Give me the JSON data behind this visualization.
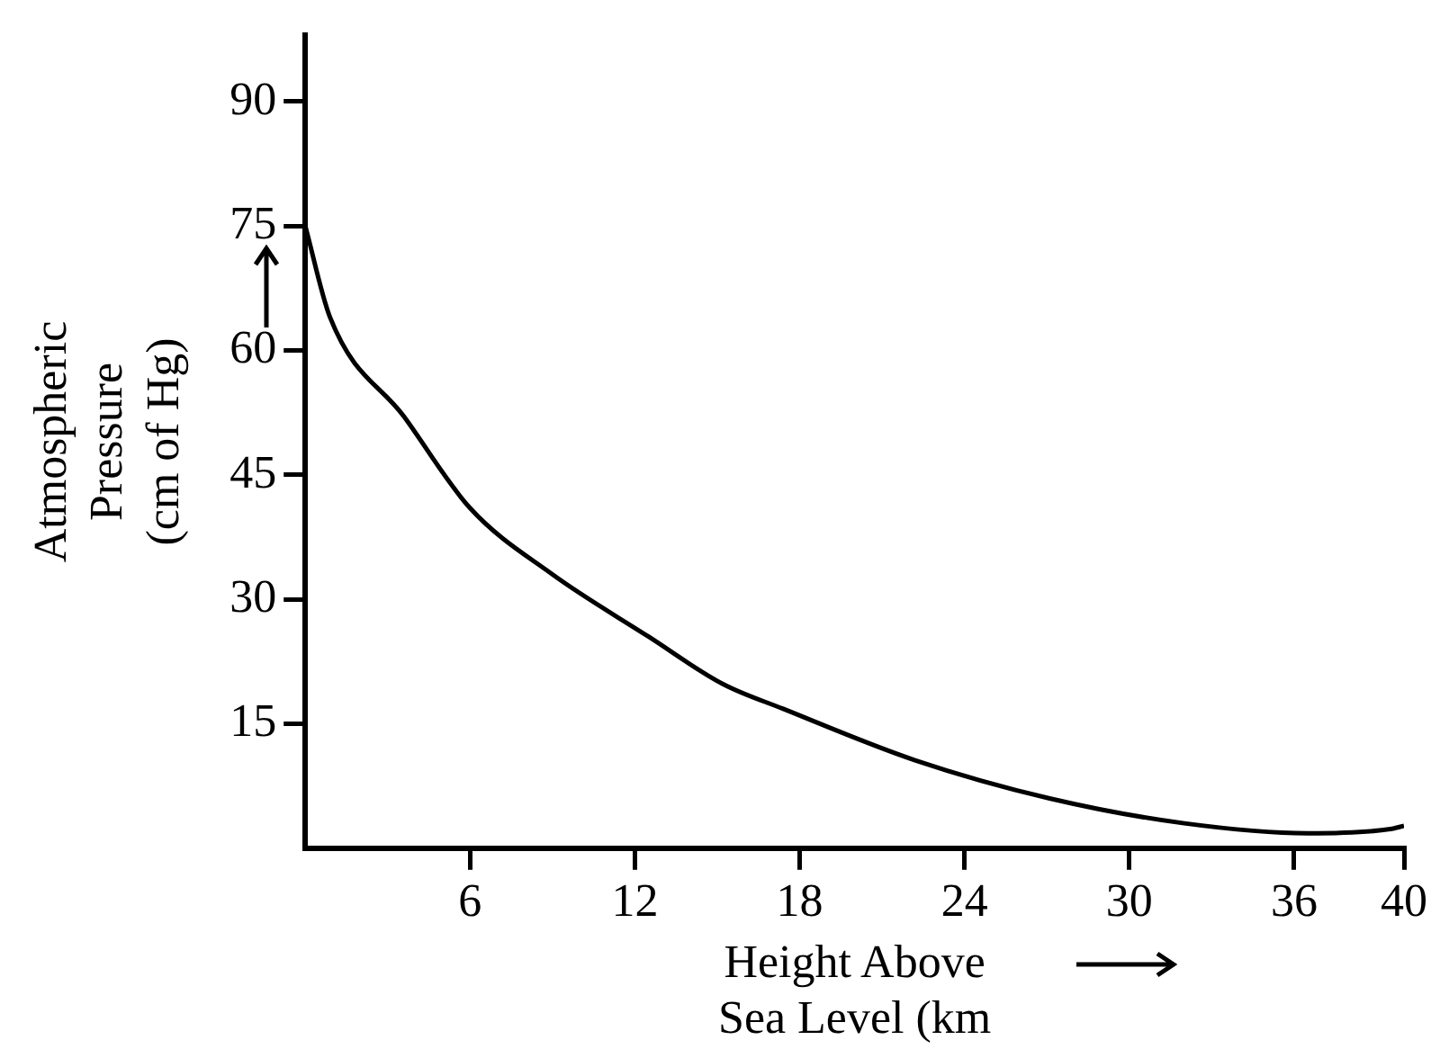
{
  "chart_data": {
    "type": "line",
    "xlabel": "Height Above\nSea Level (km",
    "ylabel": "Atmospheric\nPressure\n(cm of Hg)",
    "x": [
      0,
      0.9,
      3.6,
      6,
      9,
      12.5,
      15.2,
      17.4,
      22.2,
      27.1,
      32,
      36.5,
      39.5,
      40
    ],
    "values": [
      75,
      64,
      52,
      41,
      33,
      25.5,
      19.8,
      16.8,
      10.6,
      6.0,
      3.0,
      1.8,
      2.3,
      2.7
    ],
    "color": "#000000",
    "xlim": [
      0,
      40
    ],
    "xticks": [
      6,
      12,
      18,
      24,
      30,
      36,
      40
    ],
    "ylim": [
      0,
      98
    ],
    "yticks": [
      15,
      30,
      45,
      60,
      75,
      90
    ],
    "grid": false,
    "legend": false,
    "marker": "none",
    "line_style": "solid"
  }
}
